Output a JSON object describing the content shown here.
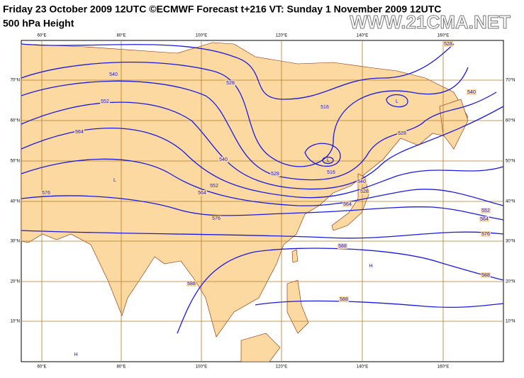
{
  "header": {
    "title": "Friday 23 October 2009 12UTC ©ECMWF Forecast t+216 VT: Sunday 1 November 2009 12UTC",
    "subtitle": "500 hPa Height"
  },
  "watermark": "WWW.21CMA.NET",
  "lon_labels": [
    "60°E",
    "80°E",
    "100°E",
    "120°E",
    "140°E",
    "160°E"
  ],
  "lat_labels": [
    "70°N",
    "60°N",
    "50°N",
    "40°N",
    "30°N",
    "20°N",
    "10°N"
  ],
  "contour_labels": [
    "540",
    "528",
    "552",
    "516",
    "564",
    "528",
    "540",
    "516",
    "528",
    "552",
    "540",
    "564",
    "576",
    "528",
    "564",
    "576",
    "552",
    "564",
    "576",
    "588",
    "588",
    "588",
    "588",
    "528",
    "540"
  ],
  "centers": [
    "L",
    "L",
    "L",
    "H",
    "H"
  ]
}
